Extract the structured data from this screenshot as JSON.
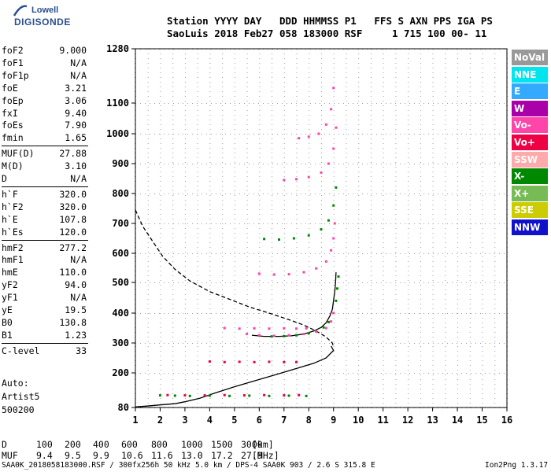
{
  "logo": {
    "line1": "Lowell",
    "line2": "DIGISONDE"
  },
  "header": {
    "line1": "Station YYYY DAY   DDD HHMMSS P1   FFS S AXN PPS IGA PS",
    "line2": "SaoLuis 2018 Feb27 058 183000 RSF     1 715 100 00- 11"
  },
  "params": [
    {
      "k": "foF2",
      "v": "9.000"
    },
    {
      "k": "foF1",
      "v": "N/A"
    },
    {
      "k": "foF1p",
      "v": "N/A"
    },
    {
      "k": "foE",
      "v": "3.21"
    },
    {
      "k": "foEp",
      "v": "3.06"
    },
    {
      "k": "fxI",
      "v": "9.40"
    },
    {
      "k": "foEs",
      "v": "7.90"
    },
    {
      "k": "fmin",
      "v": "1.65"
    },
    {
      "k": "MUF(D)",
      "v": "27.88"
    },
    {
      "k": "M(D)",
      "v": "3.10"
    },
    {
      "k": "D",
      "v": "N/A"
    },
    {
      "k": "h`F",
      "v": "320.0"
    },
    {
      "k": "h`F2",
      "v": "320.0"
    },
    {
      "k": "h`E",
      "v": "107.8"
    },
    {
      "k": "h`Es",
      "v": "120.0"
    },
    {
      "k": "hmF2",
      "v": "277.2"
    },
    {
      "k": "hmF1",
      "v": "N/A"
    },
    {
      "k": "hmE",
      "v": "110.0"
    },
    {
      "k": "yF2",
      "v": "94.0"
    },
    {
      "k": "yF1",
      "v": "N/A"
    },
    {
      "k": "yE",
      "v": "19.5"
    },
    {
      "k": "B0",
      "v": "130.8"
    },
    {
      "k": "B1",
      "v": "1.23"
    },
    {
      "k": "C-level",
      "v": "33"
    }
  ],
  "misc": {
    "auto": "Auto:",
    "artist": "Artist5",
    "version": "500200"
  },
  "legend": [
    {
      "label": "NoVal",
      "color": "#999999"
    },
    {
      "label": "NNE",
      "color": "#00e5ee"
    },
    {
      "label": "E",
      "color": "#33aaff"
    },
    {
      "label": "W",
      "color": "#aa00aa"
    },
    {
      "label": "Vo-",
      "color": "#ff44aa"
    },
    {
      "label": "Vo+",
      "color": "#ee0044"
    },
    {
      "label": "SSW",
      "color": "#ffaaaa"
    },
    {
      "label": "X-",
      "color": "#008800"
    },
    {
      "label": "X+",
      "color": "#77bb55"
    },
    {
      "label": "SSE",
      "color": "#cccc00"
    },
    {
      "label": "NNW",
      "color": "#1111cc"
    }
  ],
  "muf_table": {
    "d_label": "D",
    "d_values": [
      "100",
      "200",
      "400",
      "600",
      "800",
      "1000",
      "1500",
      "3000"
    ],
    "d_unit": "[km]",
    "muf_label": "MUF",
    "muf_values": [
      "9.4",
      "9.5",
      "9.9",
      "10.6",
      "11.6",
      "13.0",
      "17.2",
      "27.9"
    ],
    "muf_unit": "[MHz]"
  },
  "footer": {
    "left": "SAA0K_2018058183000.RSF / 300fx256h 50 kHz 5.0 km / DPS-4 SAA0K 903 / 2.6 S 315.8 E",
    "right": "Ion2Png 1.3.17"
  },
  "chart_data": {
    "type": "scatter",
    "title": "",
    "xlabel": "",
    "ylabel": "",
    "x_ticks": [
      1,
      2,
      3,
      4,
      5,
      6,
      7,
      8,
      9,
      10,
      11,
      12,
      13,
      14,
      15,
      16
    ],
    "y_ticks": [
      80,
      200,
      300,
      400,
      500,
      600,
      700,
      800,
      900,
      1000,
      1100,
      1280
    ],
    "xlim": [
      1,
      16
    ],
    "ylim": [
      80,
      1280
    ],
    "y_scale": "nonlinear",
    "grid": true,
    "series": [
      {
        "name": "",
        "kind": "solid",
        "color": "#000000",
        "x": [
          1.0,
          1.6,
          2.0,
          2.6,
          3.0,
          3.6,
          4.2,
          5.0,
          5.8,
          6.6,
          7.4,
          8.2,
          8.7,
          9.0,
          8.9
        ],
        "y": [
          82,
          86,
          89,
          93,
          100,
          112,
          130,
          152,
          172,
          192,
          212,
          232,
          250,
          275,
          290
        ]
      },
      {
        "name": "",
        "kind": "solid",
        "color": "#000000",
        "x": [
          5.7,
          6.2,
          6.8,
          7.3,
          7.8,
          8.2,
          8.5,
          8.7,
          8.85,
          8.95,
          9.0,
          9.05,
          9.08,
          9.1
        ],
        "y": [
          326,
          322,
          322,
          324,
          330,
          340,
          352,
          368,
          390,
          412,
          440,
          470,
          500,
          535
        ]
      },
      {
        "name": "",
        "kind": "dashed",
        "color": "#000000",
        "x": [
          1.0,
          1.3,
          1.7,
          2.1,
          2.6,
          3.2,
          4.0,
          4.8,
          5.6,
          6.4,
          7.2,
          7.8,
          8.3,
          8.7,
          8.95,
          9.0
        ],
        "y": [
          745,
          690,
          640,
          590,
          545,
          505,
          470,
          445,
          420,
          400,
          378,
          360,
          340,
          320,
          300,
          288
        ]
      },
      {
        "name": "O-trace F2",
        "kind": "dots",
        "color": "#008800",
        "x": [
          6.0,
          6.5,
          7.0,
          7.5,
          8.0,
          8.3,
          8.6,
          8.8,
          9.0,
          9.1,
          9.15,
          9.2
        ],
        "y": [
          325,
          322,
          323,
          326,
          332,
          340,
          352,
          370,
          400,
          440,
          480,
          520
        ]
      },
      {
        "name": "X-trace F2",
        "kind": "dots",
        "color": "#ff44aa",
        "x": [
          5.5,
          6.0,
          6.6,
          7.2,
          7.8,
          8.3,
          8.7,
          8.9,
          9.0
        ],
        "y": [
          330,
          326,
          324,
          326,
          330,
          338,
          350,
          372,
          400
        ]
      },
      {
        "name": "multi 2",
        "kind": "dots",
        "color": "#ff44aa",
        "x": [
          6.0,
          6.6,
          7.2,
          7.8,
          8.3,
          8.7,
          8.9,
          9.0,
          9.05
        ],
        "y": [
          530,
          527,
          528,
          535,
          548,
          572,
          610,
          650,
          700
        ]
      },
      {
        "name": "multi 2b",
        "kind": "dots",
        "color": "#008800",
        "x": [
          6.2,
          6.8,
          7.4,
          8.0,
          8.5,
          8.8,
          9.0,
          9.1
        ],
        "y": [
          648,
          646,
          650,
          660,
          680,
          710,
          760,
          820
        ]
      },
      {
        "name": "multi 3",
        "kind": "dots",
        "color": "#ff44aa",
        "x": [
          7.0,
          7.5,
          8.0,
          8.5,
          8.8,
          9.0,
          9.1
        ],
        "y": [
          845,
          848,
          855,
          870,
          900,
          950,
          1020
        ]
      },
      {
        "name": "multi 4",
        "kind": "dots",
        "color": "#ff44aa",
        "x": [
          7.6,
          8.0,
          8.4,
          8.7,
          8.9,
          9.0
        ],
        "y": [
          985,
          990,
          1000,
          1030,
          1080,
          1150
        ]
      },
      {
        "name": "Es",
        "kind": "dots",
        "color": "#008800",
        "x": [
          2.0,
          2.6,
          3.2,
          4.0,
          4.8,
          5.6,
          6.4,
          7.2,
          7.9
        ],
        "y": [
          122,
          121,
          120,
          121,
          120,
          121,
          120,
          121,
          120
        ]
      },
      {
        "name": "Es red",
        "kind": "dots",
        "color": "#ee0044",
        "x": [
          2.3,
          3.0,
          3.8,
          4.6,
          5.4,
          6.2,
          7.0,
          7.6
        ],
        "y": [
          123,
          122,
          122,
          123,
          122,
          123,
          122,
          123
        ]
      },
      {
        "name": "Es2",
        "kind": "dots",
        "color": "#ee0044",
        "x": [
          4.0,
          4.6,
          5.2,
          5.8,
          6.4,
          7.0,
          7.5
        ],
        "y": [
          238,
          236,
          237,
          236,
          237,
          236,
          236
        ]
      },
      {
        "name": "Es3",
        "kind": "dots",
        "color": "#ff44aa",
        "x": [
          4.6,
          5.2,
          5.8,
          6.4,
          7.0,
          7.5,
          7.9
        ],
        "y": [
          350,
          348,
          349,
          348,
          349,
          348,
          349
        ]
      }
    ]
  }
}
